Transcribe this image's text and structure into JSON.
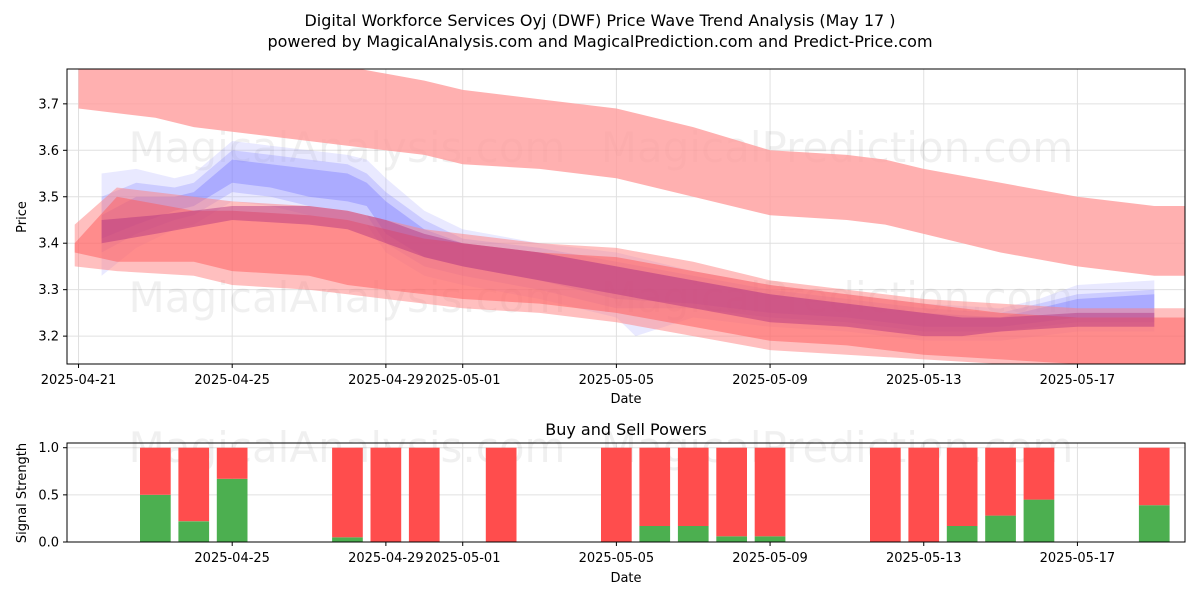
{
  "chart_data": [
    {
      "type": "area",
      "title_line1": "Digital Workforce Services Oyj (DWF) Price Wave Trend Analysis (May 17 )",
      "title_line2": "powered by MagicalAnalysis.com and MagicalPrediction.com and Predict-Price.com",
      "xlabel": "Date",
      "ylabel": "Price",
      "ylim": [
        3.14,
        3.775
      ],
      "xlim_days": [
        -0.3,
        28.8
      ],
      "x_ticks": [
        {
          "day": 0,
          "label": "2025-04-21"
        },
        {
          "day": 4,
          "label": "2025-04-25"
        },
        {
          "day": 8,
          "label": "2025-04-29"
        },
        {
          "day": 10,
          "label": "2025-05-01"
        },
        {
          "day": 14,
          "label": "2025-05-05"
        },
        {
          "day": 18,
          "label": "2025-05-09"
        },
        {
          "day": 22,
          "label": "2025-05-13"
        },
        {
          "day": 26,
          "label": "2025-05-17"
        }
      ],
      "y_ticks": [
        3.2,
        3.3,
        3.4,
        3.5,
        3.6,
        3.7
      ],
      "grid": true,
      "watermarks": [
        "MagicalAnalysis.com",
        "MagicalPrediction.com",
        "MagicalAnalysis.com",
        "MagicalPrediction.com"
      ],
      "colors": {
        "blue_band": "#7b7bff",
        "red_band": "#ff6b6b",
        "upper_red_band": "#ff9c9c"
      },
      "series": [
        {
          "name": "upper-red-band",
          "color": "#ff9c9c",
          "opacity": 0.8,
          "x": [
            0,
            2,
            3,
            5,
            7,
            9,
            10,
            12,
            14,
            16,
            18,
            20,
            21,
            22,
            24,
            26,
            28,
            28.8
          ],
          "upper": [
            3.8,
            3.8,
            3.79,
            3.78,
            3.78,
            3.75,
            3.73,
            3.71,
            3.69,
            3.65,
            3.6,
            3.59,
            3.58,
            3.56,
            3.53,
            3.5,
            3.48,
            3.48
          ],
          "lower": [
            3.69,
            3.67,
            3.65,
            3.63,
            3.61,
            3.59,
            3.57,
            3.56,
            3.54,
            3.5,
            3.46,
            3.45,
            3.44,
            3.42,
            3.38,
            3.35,
            3.33,
            3.33
          ]
        },
        {
          "name": "blue-band-wide",
          "color": "#a8a8ff",
          "opacity": 0.25,
          "x": [
            0.6,
            1.5,
            2.5,
            3,
            4,
            5,
            6,
            7,
            7.5,
            8,
            9,
            10,
            12,
            14,
            14.5,
            16,
            18,
            20,
            22,
            24,
            25,
            26,
            28
          ],
          "upper": [
            3.55,
            3.56,
            3.54,
            3.55,
            3.62,
            3.61,
            3.6,
            3.59,
            3.58,
            3.54,
            3.47,
            3.43,
            3.4,
            3.38,
            3.37,
            3.34,
            3.31,
            3.29,
            3.27,
            3.26,
            3.28,
            3.31,
            3.32
          ],
          "lower": [
            3.33,
            3.39,
            3.43,
            3.44,
            3.49,
            3.48,
            3.46,
            3.45,
            3.44,
            3.38,
            3.33,
            3.31,
            3.28,
            3.24,
            3.2,
            3.24,
            3.22,
            3.21,
            3.19,
            3.19,
            3.2,
            3.21,
            3.21
          ]
        },
        {
          "name": "blue-band-mid",
          "color": "#8a8aff",
          "opacity": 0.3,
          "x": [
            0.6,
            1.5,
            2.5,
            3,
            4,
            5,
            6,
            7,
            7.5,
            8,
            9,
            10,
            12,
            14,
            16,
            18,
            20,
            22,
            24,
            25,
            26,
            28
          ],
          "upper": [
            3.5,
            3.53,
            3.52,
            3.53,
            3.6,
            3.59,
            3.58,
            3.57,
            3.55,
            3.51,
            3.45,
            3.41,
            3.39,
            3.36,
            3.33,
            3.3,
            3.28,
            3.26,
            3.25,
            3.27,
            3.29,
            3.3
          ],
          "lower": [
            3.38,
            3.42,
            3.45,
            3.46,
            3.51,
            3.5,
            3.48,
            3.47,
            3.46,
            3.4,
            3.35,
            3.33,
            3.3,
            3.26,
            3.26,
            3.24,
            3.23,
            3.21,
            3.21,
            3.22,
            3.23,
            3.23
          ]
        },
        {
          "name": "blue-band-core",
          "color": "#6e6eff",
          "opacity": 0.35,
          "x": [
            0.6,
            1.5,
            2.5,
            3,
            4,
            5,
            6,
            7,
            7.5,
            8,
            9,
            10,
            12,
            14,
            16,
            18,
            20,
            22,
            24,
            25,
            26,
            28
          ],
          "upper": [
            3.46,
            3.5,
            3.5,
            3.51,
            3.58,
            3.57,
            3.56,
            3.55,
            3.53,
            3.49,
            3.43,
            3.4,
            3.38,
            3.35,
            3.32,
            3.29,
            3.27,
            3.25,
            3.24,
            3.26,
            3.28,
            3.29
          ],
          "lower": [
            3.41,
            3.44,
            3.47,
            3.48,
            3.53,
            3.52,
            3.5,
            3.49,
            3.48,
            3.42,
            3.37,
            3.35,
            3.32,
            3.28,
            3.27,
            3.25,
            3.24,
            3.22,
            3.22,
            3.23,
            3.24,
            3.24
          ]
        },
        {
          "name": "red-band-wide",
          "color": "#ff8080",
          "opacity": 0.5,
          "x": [
            -0.1,
            1,
            3,
            4,
            6,
            7,
            8,
            9,
            10,
            12,
            14,
            16,
            18,
            20,
            22,
            24,
            26,
            28,
            28.8
          ],
          "upper": [
            3.44,
            3.52,
            3.5,
            3.49,
            3.48,
            3.47,
            3.45,
            3.43,
            3.42,
            3.4,
            3.39,
            3.36,
            3.32,
            3.3,
            3.28,
            3.27,
            3.26,
            3.26,
            3.26
          ],
          "lower": [
            3.35,
            3.34,
            3.33,
            3.31,
            3.3,
            3.29,
            3.28,
            3.27,
            3.26,
            3.25,
            3.23,
            3.2,
            3.17,
            3.16,
            3.15,
            3.14,
            3.14,
            3.14,
            3.14
          ]
        },
        {
          "name": "red-band-mid",
          "color": "#ff5a5a",
          "opacity": 0.5,
          "x": [
            -0.1,
            1,
            3,
            4,
            6,
            7,
            8,
            9,
            10,
            12,
            14,
            16,
            18,
            20,
            22,
            24,
            26,
            28,
            28.8
          ],
          "upper": [
            3.4,
            3.5,
            3.47,
            3.47,
            3.46,
            3.45,
            3.43,
            3.41,
            3.4,
            3.38,
            3.37,
            3.34,
            3.31,
            3.29,
            3.27,
            3.25,
            3.24,
            3.24,
            3.24
          ],
          "lower": [
            3.38,
            3.36,
            3.36,
            3.34,
            3.33,
            3.31,
            3.3,
            3.29,
            3.28,
            3.27,
            3.25,
            3.22,
            3.19,
            3.18,
            3.16,
            3.15,
            3.14,
            3.14,
            3.14
          ]
        },
        {
          "name": "purple-core",
          "color": "#b03080",
          "opacity": 0.45,
          "x": [
            0.6,
            2,
            4,
            6,
            7,
            8,
            9,
            10,
            12,
            14,
            16,
            18,
            20,
            22,
            23,
            24,
            26,
            28
          ],
          "upper": [
            3.45,
            3.46,
            3.48,
            3.48,
            3.47,
            3.45,
            3.42,
            3.4,
            3.38,
            3.35,
            3.32,
            3.29,
            3.27,
            3.25,
            3.24,
            3.24,
            3.25,
            3.25
          ],
          "lower": [
            3.4,
            3.42,
            3.45,
            3.44,
            3.43,
            3.4,
            3.37,
            3.35,
            3.32,
            3.29,
            3.26,
            3.23,
            3.22,
            3.2,
            3.2,
            3.21,
            3.22,
            3.22
          ]
        }
      ]
    },
    {
      "type": "bar",
      "title": "Buy and Sell Powers",
      "xlabel": "Date",
      "ylabel": "Signal Strength",
      "ylim": [
        0,
        1.05
      ],
      "xlim_days": [
        -0.3,
        28.8
      ],
      "x_ticks": [
        {
          "day": 4,
          "label": "2025-04-25"
        },
        {
          "day": 8,
          "label": "2025-04-29"
        },
        {
          "day": 10,
          "label": "2025-05-01"
        },
        {
          "day": 14,
          "label": "2025-05-05"
        },
        {
          "day": 18,
          "label": "2025-05-09"
        },
        {
          "day": 22,
          "label": "2025-05-13"
        },
        {
          "day": 26,
          "label": "2025-05-17"
        }
      ],
      "y_ticks": [
        {
          "value": 0,
          "label": "0.0"
        },
        {
          "value": 0.5,
          "label": "0.5"
        },
        {
          "value": 1,
          "label": "1.0"
        }
      ],
      "colors": {
        "buy": "#4caf50",
        "sell": "#ff4d4d"
      },
      "days": [
        2,
        3,
        4,
        7,
        8,
        9,
        11,
        14,
        15,
        16,
        17,
        18,
        21,
        22,
        23,
        24,
        25,
        28
      ],
      "series": [
        {
          "name": "Buy",
          "values": [
            0.5,
            0.22,
            0.67,
            0.05,
            0,
            0,
            0,
            0,
            0.17,
            0.17,
            0.06,
            0.06,
            0,
            0,
            0.17,
            0.28,
            0.45,
            0.39
          ]
        },
        {
          "name": "Sell",
          "values": [
            0.5,
            0.78,
            0.33,
            0.95,
            1,
            1,
            1,
            1,
            0.83,
            0.83,
            0.94,
            0.94,
            1,
            1,
            0.83,
            0.72,
            0.55,
            0.61
          ]
        }
      ]
    }
  ]
}
